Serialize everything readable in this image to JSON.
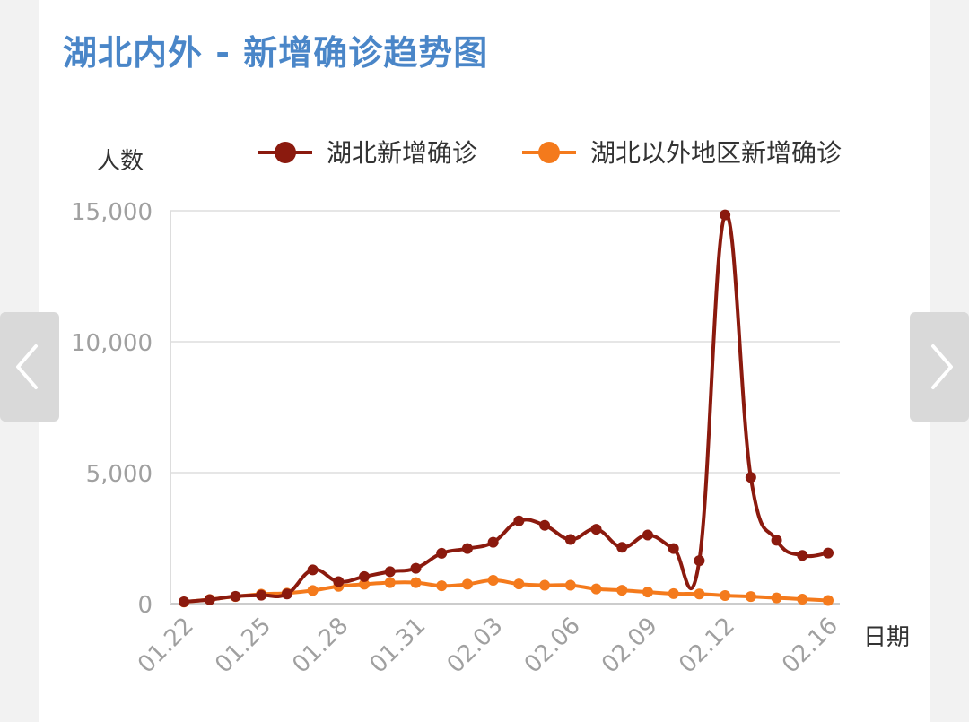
{
  "title": "湖北内外 - 新增确诊趋势图",
  "nav": {
    "prev_icon": "chevron-left-icon",
    "next_icon": "chevron-right-icon"
  },
  "colors": {
    "hubei": "#8b1a0e",
    "outside": "#f47a1c",
    "title": "#4a86c8",
    "grid": "#e6e6e6",
    "tick": "#a0a0a0"
  },
  "chart_data": {
    "type": "line",
    "ylabel": "人数",
    "xlabel": "日期",
    "ylim": [
      0,
      15000
    ],
    "yticks": [
      "0",
      "5,000",
      "10,000",
      "15,000"
    ],
    "ytick_values": [
      0,
      5000,
      10000,
      15000
    ],
    "legend_position": "top",
    "x": [
      "01.22",
      "01.23",
      "01.24",
      "01.25",
      "01.26",
      "01.27",
      "01.28",
      "01.29",
      "01.30",
      "01.31",
      "02.01",
      "02.02",
      "02.03",
      "02.04",
      "02.05",
      "02.06",
      "02.07",
      "02.08",
      "02.09",
      "02.10",
      "02.11",
      "02.12",
      "02.13",
      "02.14",
      "02.15",
      "02.16"
    ],
    "xtick_labels": [
      "01.22",
      "01.25",
      "01.28",
      "01.31",
      "02.03",
      "02.06",
      "02.09",
      "02.12",
      "02.16"
    ],
    "series": [
      {
        "name": "湖北新增确诊",
        "values": [
          70,
          150,
          280,
          320,
          370,
          1290,
          840,
          1030,
          1220,
          1350,
          1920,
          2100,
          2340,
          3160,
          2990,
          2450,
          2840,
          2150,
          2620,
          2100,
          1640,
          14840,
          4820,
          2420,
          1840,
          1930
        ]
      },
      {
        "name": "湖北以外地区新增确诊",
        "values": [
          60,
          160,
          270,
          360,
          400,
          500,
          660,
          740,
          800,
          800,
          680,
          740,
          890,
          750,
          700,
          700,
          560,
          510,
          440,
          380,
          370,
          310,
          270,
          220,
          170,
          120
        ]
      }
    ]
  }
}
